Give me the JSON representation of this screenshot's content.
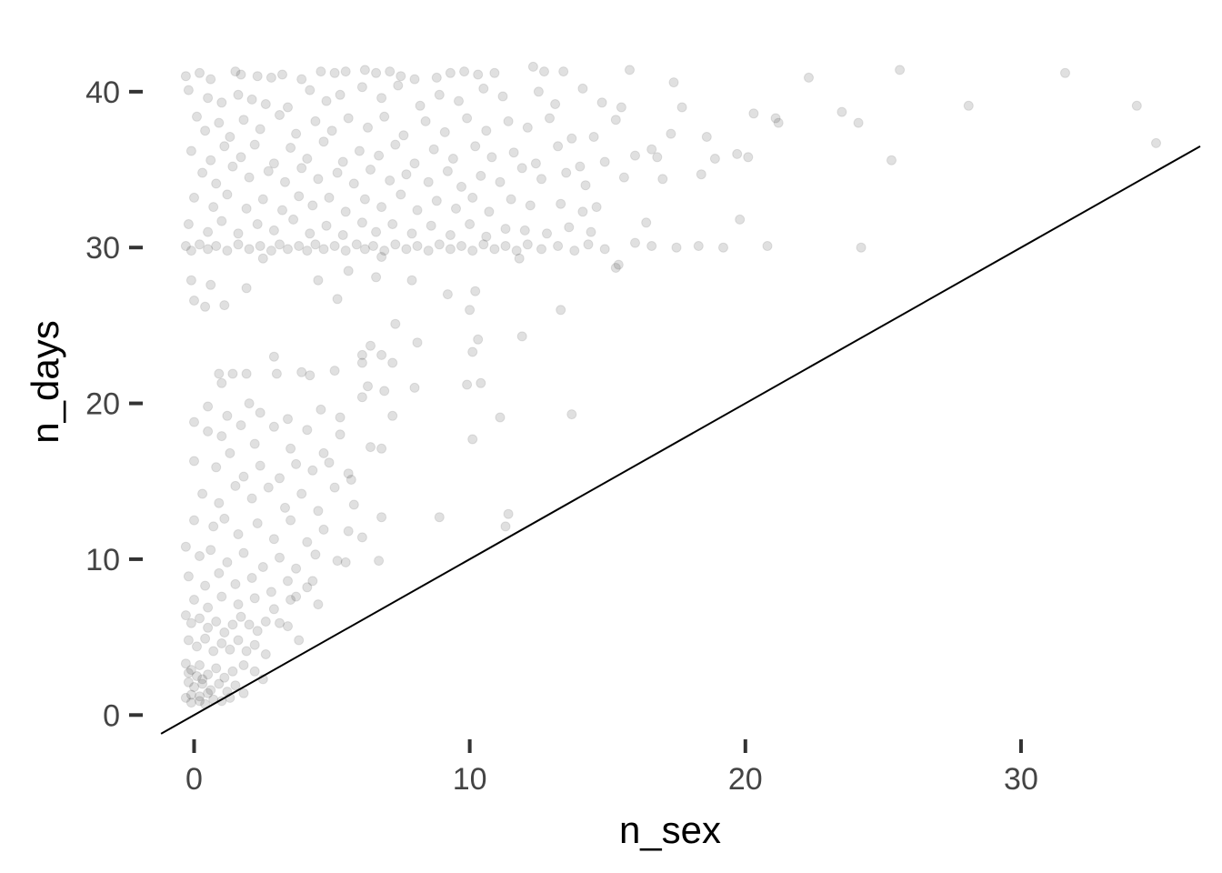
{
  "chart_data": {
    "type": "scatter",
    "title": "",
    "xlabel": "n_sex",
    "ylabel": "n_days",
    "xlim": [
      -1.5,
      36.5
    ],
    "ylim": [
      -1.5,
      42.5
    ],
    "x_ticks": [
      0,
      10,
      20,
      30
    ],
    "y_ticks": [
      0,
      10,
      20,
      30,
      40
    ],
    "grid": false,
    "legend": "none",
    "point_color": "#000000",
    "point_opacity": 0.12,
    "reference_line": {
      "slope": 1,
      "intercept": 0
    },
    "points": [
      [
        -0.3,
        41
      ],
      [
        0.2,
        41.2
      ],
      [
        0.6,
        40.8
      ],
      [
        1.5,
        41.3
      ],
      [
        1.7,
        41.1
      ],
      [
        2.3,
        41
      ],
      [
        2.8,
        40.9
      ],
      [
        3.2,
        41.1
      ],
      [
        3.9,
        40.8
      ],
      [
        4.6,
        41.3
      ],
      [
        5.1,
        41.2
      ],
      [
        5.5,
        41.3
      ],
      [
        6.2,
        41.4
      ],
      [
        6.6,
        41.2
      ],
      [
        7.1,
        41.3
      ],
      [
        7.5,
        41
      ],
      [
        8,
        40.8
      ],
      [
        8.8,
        40.9
      ],
      [
        9.3,
        41.2
      ],
      [
        9.8,
        41.3
      ],
      [
        10.3,
        41.1
      ],
      [
        10.9,
        41.2
      ],
      [
        12.3,
        41.6
      ],
      [
        12.7,
        41.3
      ],
      [
        13.4,
        41.3
      ],
      [
        15.8,
        41.4
      ],
      [
        17.4,
        40.6
      ],
      [
        22.3,
        40.9
      ],
      [
        25.6,
        41.4
      ],
      [
        31.6,
        41.2
      ],
      [
        -0.2,
        40.1
      ],
      [
        0.5,
        39.6
      ],
      [
        1,
        39.3
      ],
      [
        1.6,
        39.8
      ],
      [
        2.1,
        39.5
      ],
      [
        2.6,
        39.2
      ],
      [
        3.4,
        39
      ],
      [
        4.2,
        40.1
      ],
      [
        4.8,
        39.4
      ],
      [
        5.3,
        39.8
      ],
      [
        6.1,
        40.3
      ],
      [
        6.8,
        39.6
      ],
      [
        7.4,
        40.4
      ],
      [
        8.2,
        39.1
      ],
      [
        8.9,
        39.8
      ],
      [
        9.6,
        39.4
      ],
      [
        10.5,
        40.2
      ],
      [
        11.2,
        39.7
      ],
      [
        12.5,
        40
      ],
      [
        13.1,
        39.2
      ],
      [
        14.1,
        40.2
      ],
      [
        14.8,
        39.3
      ],
      [
        15.5,
        39
      ],
      [
        17.7,
        39
      ],
      [
        20.3,
        38.6
      ],
      [
        21.1,
        38.3
      ],
      [
        23.5,
        38.7
      ],
      [
        28.1,
        39.1
      ],
      [
        34.2,
        39.1
      ],
      [
        0.1,
        38.4
      ],
      [
        0.4,
        37.5
      ],
      [
        0.9,
        38
      ],
      [
        1.3,
        37.1
      ],
      [
        1.8,
        38.2
      ],
      [
        2.4,
        37.6
      ],
      [
        3.1,
        38.5
      ],
      [
        3.7,
        37.3
      ],
      [
        4.4,
        38.1
      ],
      [
        5,
        37.5
      ],
      [
        5.6,
        38.3
      ],
      [
        6.3,
        37.7
      ],
      [
        6.9,
        38.4
      ],
      [
        7.6,
        37.2
      ],
      [
        8.4,
        38.1
      ],
      [
        9.1,
        37.4
      ],
      [
        9.9,
        38.3
      ],
      [
        10.6,
        37.5
      ],
      [
        11.4,
        38.1
      ],
      [
        12.1,
        37.7
      ],
      [
        12.9,
        38.3
      ],
      [
        13.7,
        37
      ],
      [
        14.5,
        37.1
      ],
      [
        15.3,
        38.2
      ],
      [
        16.6,
        36.3
      ],
      [
        17.3,
        37.3
      ],
      [
        18.6,
        37.1
      ],
      [
        21.2,
        38
      ],
      [
        24.1,
        38
      ],
      [
        -0.1,
        36.2
      ],
      [
        0.6,
        35.6
      ],
      [
        1.1,
        36.5
      ],
      [
        1.7,
        35.8
      ],
      [
        2.2,
        36.6
      ],
      [
        2.9,
        35.4
      ],
      [
        3.5,
        36.4
      ],
      [
        4.1,
        35.7
      ],
      [
        4.7,
        36.8
      ],
      [
        5.4,
        35.5
      ],
      [
        6,
        36.2
      ],
      [
        6.7,
        35.9
      ],
      [
        7.3,
        36.6
      ],
      [
        8,
        35.4
      ],
      [
        8.7,
        36.3
      ],
      [
        9.4,
        35.7
      ],
      [
        10.2,
        36.5
      ],
      [
        10.8,
        35.8
      ],
      [
        11.6,
        36.1
      ],
      [
        12.4,
        35.4
      ],
      [
        13.2,
        36.5
      ],
      [
        14,
        35.2
      ],
      [
        14.9,
        35.5
      ],
      [
        16,
        35.9
      ],
      [
        16.8,
        35.8
      ],
      [
        18.9,
        35.7
      ],
      [
        19.7,
        36
      ],
      [
        20.1,
        35.8
      ],
      [
        25.3,
        35.6
      ],
      [
        34.9,
        36.7
      ],
      [
        0.3,
        34.8
      ],
      [
        0.8,
        34.1
      ],
      [
        1.4,
        35.2
      ],
      [
        2,
        34.5
      ],
      [
        2.7,
        34.9
      ],
      [
        3.3,
        34.2
      ],
      [
        3.9,
        35.1
      ],
      [
        4.5,
        34.4
      ],
      [
        5.2,
        34.8
      ],
      [
        5.8,
        34.1
      ],
      [
        6.4,
        35
      ],
      [
        7.1,
        34.3
      ],
      [
        7.7,
        34.7
      ],
      [
        8.5,
        34.2
      ],
      [
        9.2,
        34.9
      ],
      [
        9.7,
        33.9
      ],
      [
        10.4,
        34.6
      ],
      [
        11.1,
        34.2
      ],
      [
        11.9,
        35.1
      ],
      [
        12.6,
        34.4
      ],
      [
        13.5,
        34.8
      ],
      [
        14.2,
        34
      ],
      [
        15.6,
        34.5
      ],
      [
        17,
        34.4
      ],
      [
        18.4,
        34.7
      ],
      [
        0,
        33.2
      ],
      [
        0.7,
        32.6
      ],
      [
        1.2,
        33.4
      ],
      [
        1.9,
        32.5
      ],
      [
        2.5,
        33.1
      ],
      [
        3.2,
        32.4
      ],
      [
        3.8,
        33.3
      ],
      [
        4.3,
        32.7
      ],
      [
        4.9,
        33.2
      ],
      [
        5.5,
        32.3
      ],
      [
        6.2,
        33.1
      ],
      [
        6.8,
        32.6
      ],
      [
        7.5,
        33.4
      ],
      [
        8.1,
        32.4
      ],
      [
        8.8,
        33
      ],
      [
        9.5,
        32.5
      ],
      [
        10.1,
        33.2
      ],
      [
        10.7,
        32.3
      ],
      [
        11.5,
        33.1
      ],
      [
        12.2,
        32.7
      ],
      [
        13.3,
        32.8
      ],
      [
        14.1,
        32.3
      ],
      [
        14.6,
        32.6
      ],
      [
        16.4,
        31.6
      ],
      [
        -0.2,
        31.5
      ],
      [
        0.5,
        31
      ],
      [
        1,
        31.7
      ],
      [
        1.6,
        30.9
      ],
      [
        2.3,
        31.5
      ],
      [
        2.9,
        31.1
      ],
      [
        3.6,
        31.8
      ],
      [
        4.2,
        30.9
      ],
      [
        4.8,
        31.4
      ],
      [
        5.4,
        30.8
      ],
      [
        6.1,
        31.6
      ],
      [
        6.6,
        31
      ],
      [
        7.2,
        31.5
      ],
      [
        7.9,
        30.9
      ],
      [
        8.6,
        31.4
      ],
      [
        9.3,
        30.8
      ],
      [
        10,
        31.5
      ],
      [
        10.6,
        30.7
      ],
      [
        11.3,
        31.2
      ],
      [
        12,
        31.1
      ],
      [
        12.8,
        30.9
      ],
      [
        13.6,
        31.3
      ],
      [
        14.4,
        31
      ],
      [
        19.8,
        31.8
      ],
      [
        -0.3,
        30.1
      ],
      [
        -0.1,
        29.8
      ],
      [
        0.2,
        30.2
      ],
      [
        0.5,
        29.9
      ],
      [
        0.8,
        30.1
      ],
      [
        1.2,
        29.8
      ],
      [
        1.6,
        30.2
      ],
      [
        2,
        29.9
      ],
      [
        2.4,
        30.1
      ],
      [
        2.8,
        29.8
      ],
      [
        3.1,
        30.2
      ],
      [
        3.4,
        29.9
      ],
      [
        3.8,
        30.1
      ],
      [
        4.1,
        29.8
      ],
      [
        4.4,
        30.2
      ],
      [
        4.7,
        29.9
      ],
      [
        5.1,
        30.1
      ],
      [
        5.5,
        29.8
      ],
      [
        5.9,
        30.2
      ],
      [
        6.2,
        29.9
      ],
      [
        6.5,
        30.1
      ],
      [
        6.9,
        29.8
      ],
      [
        7.3,
        30.2
      ],
      [
        7.7,
        29.9
      ],
      [
        8.1,
        30.1
      ],
      [
        8.5,
        29.8
      ],
      [
        8.9,
        30.2
      ],
      [
        9.3,
        29.9
      ],
      [
        9.7,
        30.1
      ],
      [
        10.1,
        29.8
      ],
      [
        10.5,
        30.2
      ],
      [
        10.9,
        29.9
      ],
      [
        11.3,
        30.1
      ],
      [
        11.7,
        29.8
      ],
      [
        12.1,
        30.2
      ],
      [
        12.6,
        29.9
      ],
      [
        13.2,
        30.1
      ],
      [
        13.8,
        29.8
      ],
      [
        14.3,
        30.2
      ],
      [
        14.9,
        29.9
      ],
      [
        16,
        30.3
      ],
      [
        16.6,
        30.1
      ],
      [
        17.5,
        30
      ],
      [
        18.3,
        30.1
      ],
      [
        19.2,
        30
      ],
      [
        20.8,
        30.1
      ],
      [
        24.2,
        30
      ],
      [
        2.5,
        29.3
      ],
      [
        6.8,
        29.4
      ],
      [
        11.8,
        29.3
      ],
      [
        15.3,
        28.7
      ],
      [
        15.4,
        28.9
      ],
      [
        -0.1,
        27.9
      ],
      [
        0.6,
        27.6
      ],
      [
        1.1,
        26.3
      ],
      [
        1.9,
        27.4
      ],
      [
        4.5,
        27.9
      ],
      [
        5.6,
        28.5
      ],
      [
        6.6,
        28.1
      ],
      [
        7.9,
        27.9
      ],
      [
        9.2,
        27
      ],
      [
        10.2,
        27.2
      ],
      [
        0,
        26.6
      ],
      [
        0.4,
        26.2
      ],
      [
        5.2,
        26.7
      ],
      [
        10,
        26
      ],
      [
        13.3,
        26
      ],
      [
        7.3,
        25.1
      ],
      [
        8.1,
        23.9
      ],
      [
        10.3,
        24.1
      ],
      [
        11.9,
        24.3
      ],
      [
        10.1,
        23.3
      ],
      [
        6.4,
        23.7
      ],
      [
        6.1,
        23.1
      ],
      [
        6.8,
        23.1
      ],
      [
        7.2,
        22.6
      ],
      [
        2.9,
        23
      ],
      [
        6.1,
        22.6
      ],
      [
        0.9,
        21.9
      ],
      [
        1.4,
        21.9
      ],
      [
        1.9,
        21.9
      ],
      [
        3,
        21.9
      ],
      [
        3.9,
        22
      ],
      [
        4.2,
        21.8
      ],
      [
        5.1,
        22.1
      ],
      [
        6.3,
        21.1
      ],
      [
        6.9,
        20.8
      ],
      [
        8,
        21
      ],
      [
        9.9,
        21.2
      ],
      [
        10.4,
        21.3
      ],
      [
        1,
        21.3
      ],
      [
        2,
        20
      ],
      [
        0.5,
        19.8
      ],
      [
        1.2,
        19.2
      ],
      [
        2.4,
        19.4
      ],
      [
        3.4,
        19
      ],
      [
        4.6,
        19.6
      ],
      [
        5.3,
        19.1
      ],
      [
        6.1,
        20.4
      ],
      [
        7.2,
        19.2
      ],
      [
        10.1,
        17.7
      ],
      [
        11.1,
        19.1
      ],
      [
        13.7,
        19.3
      ],
      [
        0,
        18.8
      ],
      [
        0.5,
        18.2
      ],
      [
        1,
        17.9
      ],
      [
        1.7,
        18.6
      ],
      [
        2.2,
        17.4
      ],
      [
        2.9,
        18.5
      ],
      [
        3.5,
        17.1
      ],
      [
        4.1,
        18.3
      ],
      [
        4.7,
        16.8
      ],
      [
        5.3,
        18
      ],
      [
        6.4,
        17.2
      ],
      [
        6.8,
        17.1
      ],
      [
        0,
        16.3
      ],
      [
        0.8,
        15.9
      ],
      [
        1.3,
        16.8
      ],
      [
        1.8,
        15.3
      ],
      [
        2.4,
        16
      ],
      [
        3.1,
        15.2
      ],
      [
        3.7,
        16.1
      ],
      [
        4.3,
        15.7
      ],
      [
        4.9,
        16.2
      ],
      [
        5.6,
        15.5
      ],
      [
        5.7,
        15.1
      ],
      [
        0.3,
        14.2
      ],
      [
        0.9,
        13.6
      ],
      [
        1.5,
        14.7
      ],
      [
        2.1,
        13.9
      ],
      [
        2.7,
        14.6
      ],
      [
        3.3,
        13.3
      ],
      [
        3.9,
        14.2
      ],
      [
        4.5,
        13.1
      ],
      [
        5.1,
        14.6
      ],
      [
        5.8,
        13.5
      ],
      [
        0,
        12.5
      ],
      [
        0.7,
        12.1
      ],
      [
        1.1,
        12.6
      ],
      [
        1.6,
        11.6
      ],
      [
        2.3,
        12.3
      ],
      [
        2.9,
        11.3
      ],
      [
        3.5,
        12.5
      ],
      [
        4.1,
        11.1
      ],
      [
        4.7,
        11.9
      ],
      [
        5.6,
        11.8
      ],
      [
        6.1,
        11.4
      ],
      [
        6.8,
        12.7
      ],
      [
        8.9,
        12.7
      ],
      [
        11.4,
        12.9
      ],
      [
        11.3,
        12.1
      ],
      [
        -0.3,
        10.8
      ],
      [
        0.2,
        10.2
      ],
      [
        0.6,
        10.6
      ],
      [
        1.2,
        9.8
      ],
      [
        1.8,
        10.4
      ],
      [
        2.5,
        9.5
      ],
      [
        3.1,
        10.1
      ],
      [
        3.7,
        9.4
      ],
      [
        4.4,
        10.3
      ],
      [
        5.2,
        9.9
      ],
      [
        5.5,
        9.8
      ],
      [
        6.7,
        9.9
      ],
      [
        -0.2,
        8.9
      ],
      [
        0.4,
        8.3
      ],
      [
        0.9,
        9.1
      ],
      [
        1.5,
        8.4
      ],
      [
        2.1,
        8.8
      ],
      [
        2.8,
        7.9
      ],
      [
        3.4,
        8.6
      ],
      [
        4.1,
        8.2
      ],
      [
        4.3,
        8.6
      ],
      [
        0,
        7.4
      ],
      [
        0.5,
        6.9
      ],
      [
        1,
        7.6
      ],
      [
        1.6,
        7.1
      ],
      [
        2.2,
        7.5
      ],
      [
        2.9,
        6.8
      ],
      [
        3.5,
        7.4
      ],
      [
        3.7,
        7.6
      ],
      [
        4.5,
        7.1
      ],
      [
        -0.3,
        6.4
      ],
      [
        -0.1,
        5.9
      ],
      [
        0.2,
        6.2
      ],
      [
        0.5,
        5.6
      ],
      [
        0.8,
        6
      ],
      [
        1.1,
        5.3
      ],
      [
        1.4,
        5.8
      ],
      [
        1.7,
        6.3
      ],
      [
        2,
        5.8
      ],
      [
        2.3,
        5.4
      ],
      [
        2.6,
        6
      ],
      [
        3.1,
        5.9
      ],
      [
        3.4,
        5.7
      ],
      [
        3.8,
        4.8
      ],
      [
        -0.2,
        4.8
      ],
      [
        0.1,
        4.4
      ],
      [
        0.4,
        4.9
      ],
      [
        0.7,
        4.1
      ],
      [
        1,
        4.6
      ],
      [
        1.3,
        4.2
      ],
      [
        1.6,
        4.8
      ],
      [
        1.9,
        4.1
      ],
      [
        2.2,
        4.5
      ],
      [
        2.6,
        3.9
      ],
      [
        -0.3,
        3.3
      ],
      [
        -0.1,
        2.9
      ],
      [
        0.2,
        3.2
      ],
      [
        0.5,
        2.6
      ],
      [
        0.8,
        3
      ],
      [
        1.1,
        2.4
      ],
      [
        1.4,
        2.8
      ],
      [
        1.8,
        3.2
      ],
      [
        2.2,
        2.8
      ],
      [
        2.5,
        2.3
      ],
      [
        -0.2,
        2.1
      ],
      [
        0,
        1.8
      ],
      [
        0.3,
        2.3
      ],
      [
        0.6,
        1.6
      ],
      [
        0.9,
        2
      ],
      [
        1.2,
        1.5
      ],
      [
        1.5,
        1.9
      ],
      [
        1.8,
        1.4
      ],
      [
        -0.3,
        1.1
      ],
      [
        -0.1,
        0.8
      ],
      [
        0.2,
        1.2
      ],
      [
        0.4,
        0.7
      ],
      [
        0.7,
        1
      ],
      [
        1,
        0.9
      ],
      [
        1.3,
        1.1
      ],
      [
        -0.2,
        2.7
      ],
      [
        0.1,
        2.5
      ],
      [
        0.3,
        2
      ],
      [
        -0.1,
        1.3
      ],
      [
        0.2,
        0.9
      ],
      [
        0.5,
        1.4
      ]
    ]
  }
}
